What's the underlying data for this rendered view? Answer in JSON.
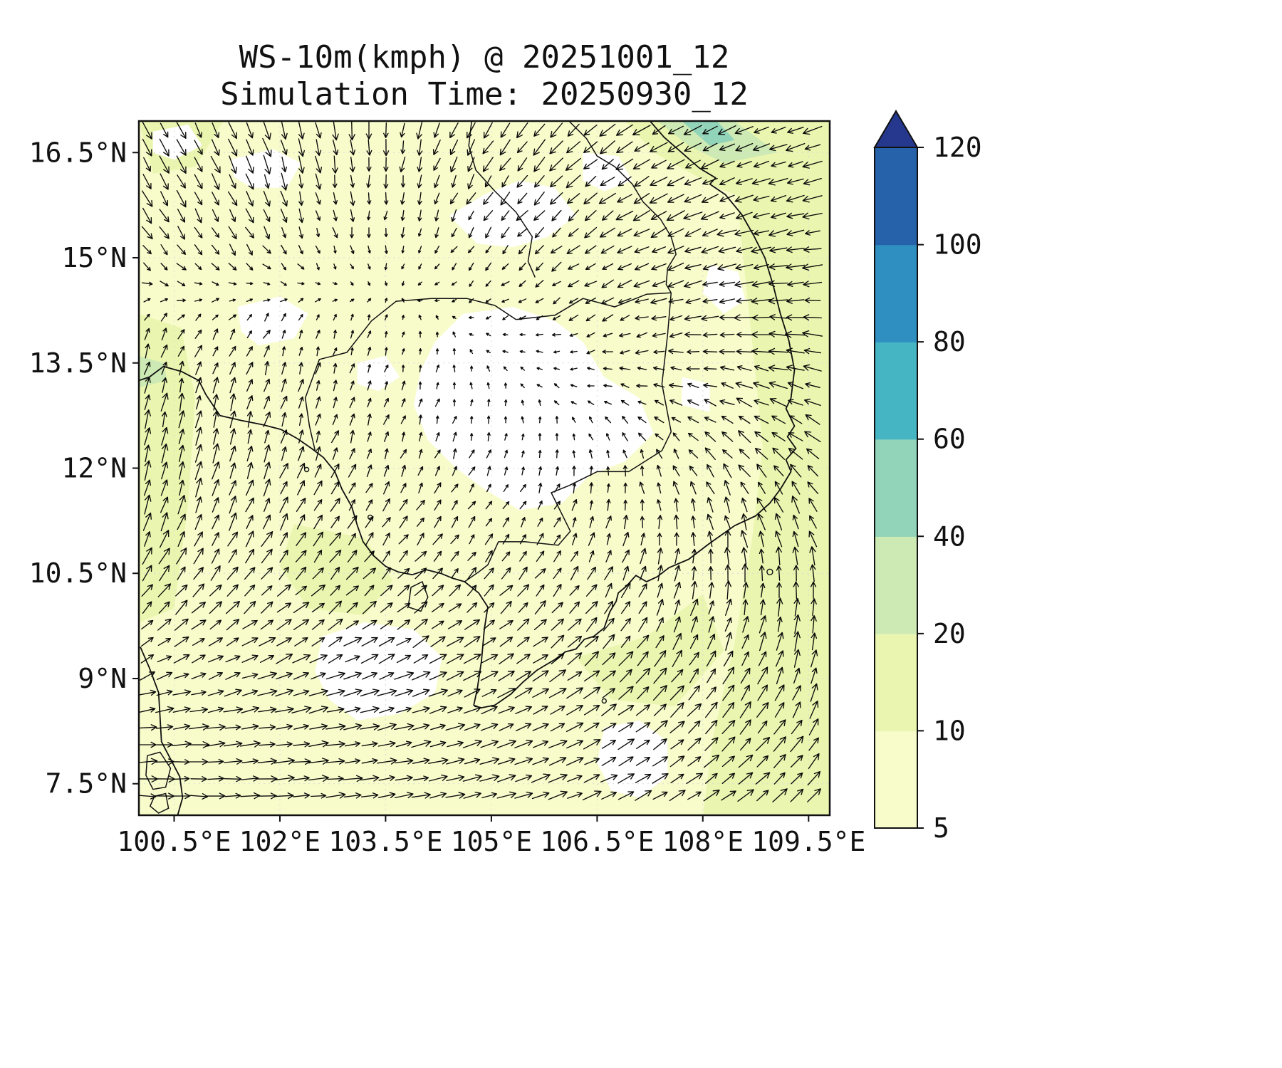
{
  "title": "WS-10m(kmph) @ 20251001_12",
  "subtitle": "Simulation Time: 20250930_12",
  "chart_data": {
    "type": "heatmap",
    "subtype": "filled-contour wind-speed map with quiver wind vectors over Indochina / South China Sea",
    "variable": "WS-10m",
    "units": "kmph",
    "valid_time": "20251001_12",
    "simulation_time": "20250930_12",
    "title": "WS-10m(kmph) @ 20251001_12",
    "subtitle": "Simulation Time: 20250930_12",
    "xlim": [
      100.0,
      109.8
    ],
    "ylim": [
      7.05,
      16.95
    ],
    "grid": true,
    "x_tick_values": [
      100.5,
      102,
      103.5,
      105,
      106.5,
      108,
      109.5
    ],
    "x_tick_labels": [
      "100.5°E",
      "102°E",
      "103.5°E",
      "105°E",
      "106.5°E",
      "108°E",
      "109.5°E"
    ],
    "y_tick_values": [
      16.5,
      15,
      13.5,
      12,
      10.5,
      9,
      7.5
    ],
    "y_tick_labels": [
      "16.5°N",
      "15°N",
      "13.5°N",
      "12°N",
      "10.5°N",
      "9°N",
      "7.5°N"
    ],
    "colorbar": {
      "orientation": "vertical",
      "extend": "max",
      "levels": [
        5,
        10,
        20,
        40,
        60,
        80,
        100,
        120
      ],
      "tick_labels": [
        "5",
        "10",
        "20",
        "40",
        "60",
        "80",
        "100",
        "120"
      ],
      "colors": [
        "#f8fccb",
        "#eaf6af",
        "#cdeab4",
        "#91d4b9",
        "#45b5c4",
        "#2f8fc0",
        "#2562aa"
      ],
      "over_color": "#25388e"
    },
    "field_reading": {
      "dominant_range_kmph": [
        5,
        10
      ],
      "calm_below_5_bboxes_lonlat": [
        [
          103.9,
          11.4,
          107.3,
          14.3
        ],
        [
          104.4,
          15.1,
          106.2,
          16.1
        ],
        [
          106.3,
          15.9,
          107.0,
          16.5
        ],
        [
          101.3,
          16.0,
          102.3,
          16.55
        ],
        [
          102.5,
          8.4,
          104.3,
          9.8
        ],
        [
          106.5,
          7.3,
          107.5,
          8.4
        ],
        [
          101.4,
          13.75,
          102.4,
          14.45
        ]
      ],
      "range_10_20_bboxes_lonlat": [
        [
          108.0,
          7.05,
          109.8,
          16.95
        ],
        [
          100.0,
          9.8,
          100.8,
          14.2
        ],
        [
          100.0,
          16.2,
          101.2,
          16.95
        ],
        [
          102.0,
          9.9,
          103.6,
          11.2
        ],
        [
          106.2,
          8.6,
          108.3,
          10.2
        ]
      ],
      "range_20_60_bboxes_lonlat": [
        [
          107.3,
          16.3,
          109.1,
          16.95
        ]
      ],
      "wind_vector_samples": [
        {
          "lon": 100.4,
          "lat": 12.3,
          "direction_toward": "N",
          "relative_strength": "strong"
        },
        {
          "lon": 100.4,
          "lat": 16.3,
          "direction_toward": "SE",
          "relative_strength": "moderate"
        },
        {
          "lon": 105.3,
          "lat": 16.3,
          "direction_toward": "SW",
          "relative_strength": "moderate"
        },
        {
          "lon": 108.0,
          "lat": 16.6,
          "direction_toward": "WSW",
          "relative_strength": "strong"
        },
        {
          "lon": 109.5,
          "lat": 13.0,
          "direction_toward": "WNW",
          "relative_strength": "strong"
        },
        {
          "lon": 108.9,
          "lat": 11.2,
          "direction_toward": "NNW",
          "relative_strength": "moderate"
        },
        {
          "lon": 108.0,
          "lat": 7.6,
          "direction_toward": "ENE",
          "relative_strength": "strong"
        },
        {
          "lon": 105.5,
          "lat": 7.4,
          "direction_toward": "E",
          "relative_strength": "strong"
        },
        {
          "lon": 102.8,
          "lat": 10.6,
          "direction_toward": "NE",
          "relative_strength": "moderate"
        },
        {
          "lon": 105.6,
          "lat": 12.9,
          "direction_toward": "variable",
          "relative_strength": "calm"
        }
      ]
    }
  }
}
